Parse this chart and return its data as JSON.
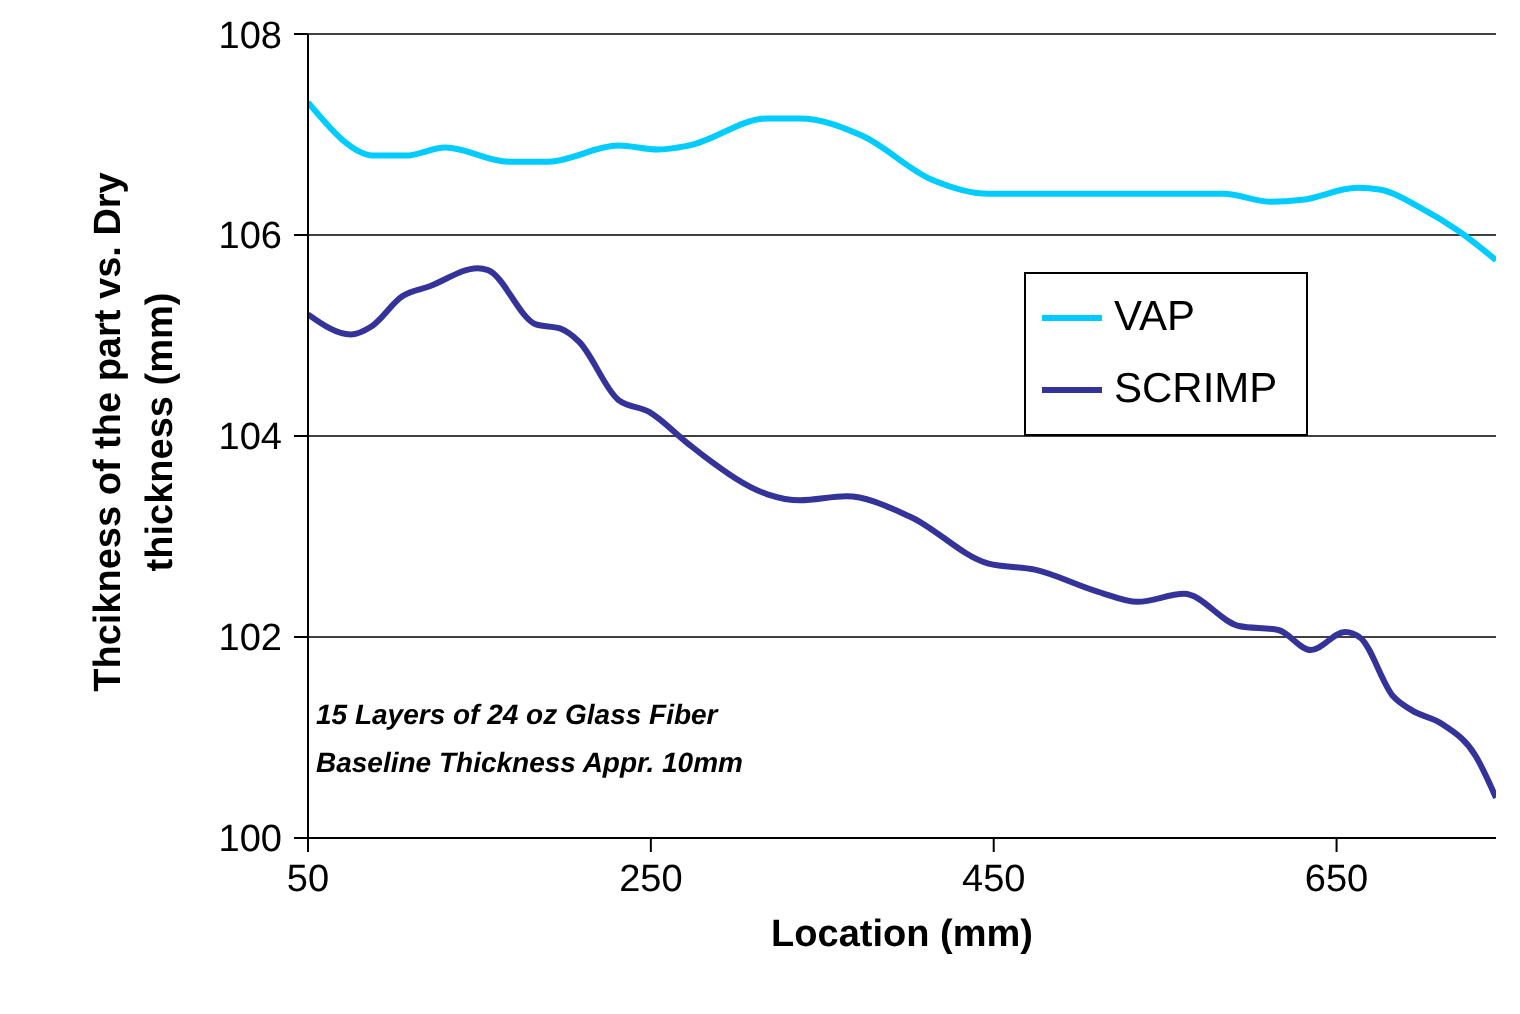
{
  "chart_data": {
    "type": "line",
    "xlabel": "Location (mm)",
    "ylabel": "Thcikness of the part vs. Dry thickness (mm)",
    "xlim": [
      50,
      743
    ],
    "xticks": [
      50,
      250,
      450,
      650
    ],
    "ylim": [
      100,
      108
    ],
    "yticks": [
      100,
      102,
      104,
      106,
      108
    ],
    "grid": "y",
    "legend": "right",
    "marker": "none",
    "line_style": "solid",
    "annotations": [
      "15 Layers of 24 oz Glass Fiber",
      "Baseline Thickness Appr. 10mm"
    ],
    "series": [
      {
        "name": "VAP",
        "color": "#00ccff",
        "x": [
          50,
          89,
          107,
          130,
          167,
          190,
          231,
          254,
          272,
          318,
          337,
          373,
          414,
          447,
          492,
          515,
          584,
          612,
          630,
          662,
          676,
          699,
          722,
          743
        ],
        "values": [
          107.32,
          106.79,
          106.79,
          106.87,
          106.73,
          106.73,
          106.89,
          106.85,
          106.89,
          107.16,
          107.16,
          106.99,
          106.55,
          106.41,
          106.41,
          106.41,
          106.41,
          106.33,
          106.35,
          106.47,
          106.45,
          106.27,
          106.03,
          105.75
        ]
      },
      {
        "name": "SCRIMP",
        "color": "#333399",
        "x": [
          50,
          75,
          87,
          105,
          121,
          149,
          155,
          183,
          197,
          208,
          231,
          249,
          272,
          281,
          318,
          337,
          364,
          401,
          447,
          474,
          511,
          534,
          561,
          593,
          616,
          635,
          655,
          664,
          683,
          694,
          712,
          731,
          743
        ],
        "values": [
          105.21,
          105.01,
          105.09,
          105.39,
          105.49,
          105.67,
          105.65,
          105.11,
          105.07,
          104.94,
          104.36,
          104.24,
          103.92,
          103.8,
          103.42,
          103.36,
          103.4,
          103.2,
          102.73,
          102.67,
          102.45,
          102.35,
          102.43,
          102.11,
          102.07,
          101.87,
          102.05,
          101.99,
          101.41,
          101.27,
          101.13,
          100.82,
          100.4
        ]
      }
    ]
  }
}
